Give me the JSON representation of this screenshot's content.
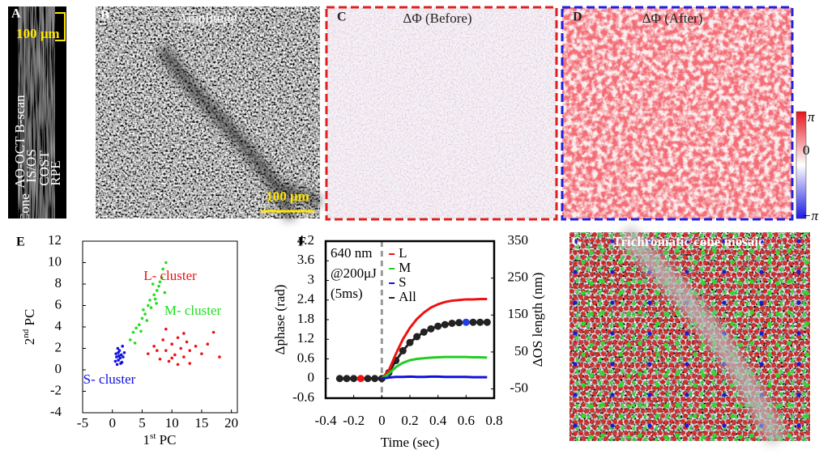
{
  "panels": {
    "a": {
      "label": "A",
      "scale": "100 μm",
      "title": "AO-OCT B-scan",
      "layers": [
        "IS/OS",
        "COST",
        "RPE"
      ],
      "cone": "Cone"
    },
    "b": {
      "label": "B",
      "title": "Amplitude",
      "scale": "100 μm"
    },
    "c": {
      "label": "C",
      "title": "ΔΦ (Before)"
    },
    "d": {
      "label": "D",
      "title": "ΔΦ (After)"
    },
    "g": {
      "label": "G",
      "title": "Trichromatic cone mosaic"
    }
  },
  "colorbar": {
    "labels": [
      "π",
      "0",
      "−π"
    ],
    "colors": [
      "#e8141c",
      "#ffffff",
      "#1a1ae6"
    ]
  },
  "chart_data": [
    {
      "type": "scatter",
      "label": "E",
      "xlabel": [
        "1",
        "st",
        " PC"
      ],
      "ylabel": [
        "2",
        "nd",
        " PC"
      ],
      "xlim": [
        -5,
        21
      ],
      "ylim": [
        -4,
        12
      ],
      "xticks": [
        -5,
        0,
        5,
        10,
        15,
        20
      ],
      "yticks": [
        -4,
        -2,
        0,
        2,
        4,
        6,
        8,
        10,
        12
      ],
      "series": [
        {
          "name": "L- cluster",
          "color": "#ee1111",
          "x": [
            6,
            7,
            8,
            8.5,
            9,
            9.5,
            10,
            10.5,
            11,
            11.5,
            12,
            12.5,
            13,
            14,
            15,
            16,
            17,
            18,
            9,
            11,
            13,
            7.5,
            10,
            12
          ],
          "values": [
            1.5,
            2.2,
            1,
            2.8,
            1.8,
            0.8,
            2.4,
            1.4,
            3,
            2,
            1.2,
            2.6,
            1.8,
            2.2,
            1.5,
            2.4,
            3.5,
            1.2,
            3.8,
            0.5,
            0.6,
            1.8,
            1.1,
            3.4
          ]
        },
        {
          "name": "M- cluster",
          "color": "#22dd22",
          "x": [
            3,
            3.5,
            4,
            4.5,
            5,
            5.2,
            5.5,
            6,
            6.3,
            6.5,
            7,
            7.2,
            7.5,
            7.8,
            8,
            8.3,
            8.5,
            5.8,
            6.8,
            7.4,
            4.8,
            9,
            3.8,
            8.8
          ],
          "values": [
            2.8,
            3.5,
            3.9,
            4.2,
            4.8,
            5.6,
            5.2,
            6,
            6.5,
            5.8,
            7,
            6.6,
            7.4,
            7.8,
            8.2,
            8.6,
            9.4,
            4.6,
            8,
            6.2,
            3.6,
            10,
            2.5,
            7.2
          ]
        },
        {
          "name": "S- cluster",
          "color": "#1111dd",
          "x": [
            0.5,
            0.7,
            0.8,
            1,
            1,
            1.2,
            1.3,
            1.5,
            1.6,
            1.8,
            0.9,
            1.1,
            1.4,
            0.6,
            2,
            1.7
          ],
          "values": [
            0.8,
            1.2,
            0.5,
            1.6,
            0.9,
            1.8,
            1.1,
            1.4,
            0.7,
            1.2,
            2,
            1.3,
            0.6,
            1.5,
            1.6,
            2.2
          ]
        }
      ]
    },
    {
      "type": "line",
      "label": "F",
      "xlabel": "Time (sec)",
      "ylabel": "Δphase (rad)",
      "y2label": "ΔOS length (nm)",
      "annotation": [
        "640 nm",
        "@200μJ",
        "(5ms)"
      ],
      "xlim": [
        -0.4,
        0.8
      ],
      "ylim": [
        -0.6,
        4.2
      ],
      "y2lim": [
        -75,
        350
      ],
      "xticks": [
        -0.4,
        -0.2,
        0,
        0.2,
        0.4,
        0.6,
        0.8
      ],
      "yticks": [
        -0.6,
        0,
        0.6,
        1.2,
        1.8,
        2.4,
        3,
        3.6,
        4.2
      ],
      "y2ticks": [
        -50,
        50,
        150,
        250,
        350
      ],
      "vline": 0,
      "x": [
        -0.3,
        -0.25,
        -0.2,
        -0.15,
        -0.1,
        -0.05,
        0,
        0.05,
        0.1,
        0.15,
        0.2,
        0.25,
        0.3,
        0.35,
        0.4,
        0.45,
        0.5,
        0.55,
        0.6,
        0.65,
        0.7,
        0.75
      ],
      "series": [
        {
          "name": "L",
          "color": "#ee1111",
          "values": [
            null,
            null,
            null,
            null,
            null,
            null,
            0,
            0.25,
            0.75,
            1.2,
            1.55,
            1.82,
            2.02,
            2.17,
            2.27,
            2.34,
            2.38,
            2.4,
            2.42,
            2.42,
            2.43,
            2.43
          ]
        },
        {
          "name": "M",
          "color": "#22cc22",
          "values": [
            null,
            null,
            null,
            null,
            null,
            null,
            0,
            0.15,
            0.35,
            0.48,
            0.56,
            0.6,
            0.62,
            0.64,
            0.65,
            0.66,
            0.66,
            0.66,
            0.66,
            0.65,
            0.65,
            0.64
          ]
        },
        {
          "name": "S",
          "color": "#1111dd",
          "values": [
            null,
            null,
            null,
            null,
            null,
            null,
            0,
            0.03,
            0.05,
            0.05,
            0.06,
            0.05,
            0.05,
            0.06,
            0.06,
            0.05,
            0.05,
            0.05,
            0.05,
            0.04,
            0.04,
            0.04
          ]
        },
        {
          "name": "All",
          "color": "#222222",
          "markers": true,
          "highlights": [
            {
              "index": 3,
              "color": "#ee1111"
            },
            {
              "index": 18,
              "color": "#1f3fe0"
            }
          ],
          "values": [
            0,
            0,
            0,
            0,
            0,
            0,
            0,
            0.18,
            0.55,
            0.85,
            1.1,
            1.28,
            1.42,
            1.52,
            1.6,
            1.65,
            1.69,
            1.71,
            1.72,
            1.72,
            1.72,
            1.72
          ]
        }
      ]
    }
  ]
}
